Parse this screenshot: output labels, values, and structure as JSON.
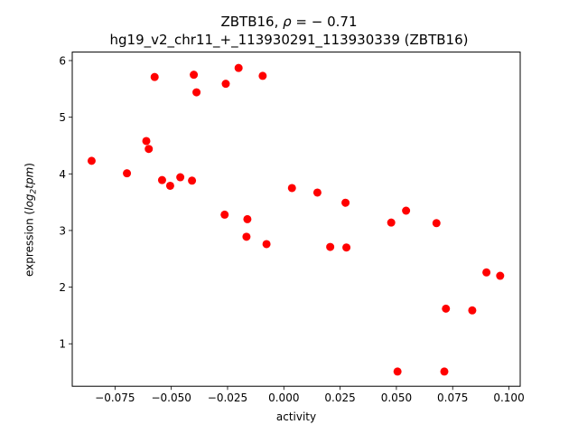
{
  "chart_data": {
    "type": "scatter",
    "title": {
      "gene": "ZBTB16",
      "rho_label": "ρ",
      "rho_value": "0.71",
      "rho_sign": "−",
      "subtitle": "hg19_v2_chr11_+_113930291_113930339 (ZBTB16)"
    },
    "xlabel": "activity",
    "ylabel_prefix": "expression (",
    "ylabel_math": "log",
    "ylabel_sub": "2",
    "ylabel_math2": "tpm",
    "ylabel_suffix": ")",
    "xlim": [
      -0.094,
      0.105
    ],
    "ylim": [
      0.25,
      6.15
    ],
    "xticks": [
      -0.075,
      -0.05,
      -0.025,
      0.0,
      0.025,
      0.05,
      0.075,
      0.1
    ],
    "xtick_labels": [
      "−0.075",
      "−0.050",
      "−0.025",
      "0.000",
      "0.025",
      "0.050",
      "0.075",
      "0.100"
    ],
    "yticks": [
      1,
      2,
      3,
      4,
      5,
      6
    ],
    "ytick_labels": [
      "1",
      "2",
      "3",
      "4",
      "5",
      "6"
    ],
    "grid": false,
    "marker_color": "#ff0000",
    "points": [
      {
        "x": -0.0854,
        "y": 4.23
      },
      {
        "x": -0.0697,
        "y": 4.01
      },
      {
        "x": -0.0574,
        "y": 5.71
      },
      {
        "x": -0.0611,
        "y": 4.58
      },
      {
        "x": -0.06,
        "y": 4.44
      },
      {
        "x": -0.0541,
        "y": 3.89
      },
      {
        "x": -0.0505,
        "y": 3.79
      },
      {
        "x": -0.046,
        "y": 3.94
      },
      {
        "x": -0.0408,
        "y": 3.88
      },
      {
        "x": -0.04,
        "y": 5.75
      },
      {
        "x": -0.0388,
        "y": 5.44
      },
      {
        "x": -0.0258,
        "y": 5.59
      },
      {
        "x": -0.0201,
        "y": 5.87
      },
      {
        "x": -0.0094,
        "y": 5.73
      },
      {
        "x": -0.0263,
        "y": 3.28
      },
      {
        "x": -0.0162,
        "y": 3.2
      },
      {
        "x": -0.0166,
        "y": 2.89
      },
      {
        "x": -0.0077,
        "y": 2.76
      },
      {
        "x": 0.0036,
        "y": 3.75
      },
      {
        "x": 0.0149,
        "y": 3.67
      },
      {
        "x": 0.0274,
        "y": 3.49
      },
      {
        "x": 0.0206,
        "y": 2.71
      },
      {
        "x": 0.0278,
        "y": 2.7
      },
      {
        "x": 0.0477,
        "y": 3.14
      },
      {
        "x": 0.0543,
        "y": 3.35
      },
      {
        "x": 0.0678,
        "y": 3.13
      },
      {
        "x": 0.0505,
        "y": 0.51
      },
      {
        "x": 0.0713,
        "y": 0.51
      },
      {
        "x": 0.072,
        "y": 1.62
      },
      {
        "x": 0.0837,
        "y": 1.59
      },
      {
        "x": 0.09,
        "y": 2.26
      },
      {
        "x": 0.0961,
        "y": 2.2
      }
    ]
  }
}
